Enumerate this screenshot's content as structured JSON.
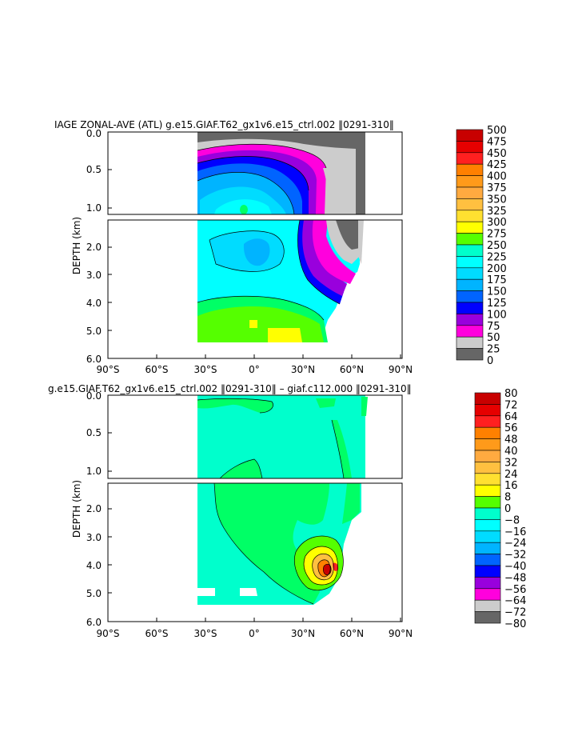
{
  "chart_data": [
    {
      "type": "contour",
      "title": "IAGE ZONAL-AVE (ATL) g.e15.GIAF.T62_gx1v6.e15_ctrl.002 ‖0291-310‖",
      "ylabel": "DEPTH (km)",
      "x_ticks": [
        "90°S",
        "60°S",
        "30°S",
        "0°",
        "30°N",
        "60°N",
        "90°N"
      ],
      "x_range": [
        -90,
        90
      ],
      "y_ticks_upper": [
        "0.0",
        "0.5",
        "1.0"
      ],
      "y_ticks_lower": [
        "2.0",
        "3.0",
        "4.0",
        "5.0",
        "6.0"
      ],
      "y_range": [
        0,
        6
      ],
      "colorbar_levels": [
        "500",
        "475",
        "450",
        "425",
        "400",
        "375",
        "350",
        "325",
        "300",
        "275",
        "250",
        "225",
        "200",
        "175",
        "150",
        "125",
        "100",
        "75",
        "50",
        "25",
        "0"
      ],
      "colorbar_colors": [
        "#c80000",
        "#e60000",
        "#ff2020",
        "#ff8000",
        "#ff9a1a",
        "#ffaa40",
        "#ffc040",
        "#ffe030",
        "#ffff00",
        "#55ff00",
        "#00ff66",
        "#00ffcc",
        "#00ffff",
        "#00dcff",
        "#00b4ff",
        "#0064ff",
        "#0000ff",
        "#9900dd",
        "#ff00dd",
        "#cccccc",
        "#666666"
      ]
    },
    {
      "type": "contour",
      "title": "g.e15.GIAF.T62_gx1v6.e15_ctrl.002 ‖0291-310‖ – giaf.c112.000 ‖0291-310‖",
      "ylabel": "DEPTH (km)",
      "x_ticks": [
        "90°S",
        "60°S",
        "30°S",
        "0°",
        "30°N",
        "60°N",
        "90°N"
      ],
      "x_range": [
        -90,
        90
      ],
      "y_ticks_upper": [
        "0.0",
        "0.5",
        "1.0"
      ],
      "y_ticks_lower": [
        "2.0",
        "3.0",
        "4.0",
        "5.0",
        "6.0"
      ],
      "y_range": [
        0,
        6
      ],
      "colorbar_levels": [
        "80",
        "72",
        "64",
        "56",
        "48",
        "40",
        "32",
        "24",
        "16",
        "8",
        "0",
        "−8",
        "−16",
        "−24",
        "−32",
        "−40",
        "−48",
        "−56",
        "−64",
        "−72",
        "−80"
      ],
      "colorbar_colors": [
        "#c80000",
        "#e60000",
        "#ff2020",
        "#ff8000",
        "#ff9a1a",
        "#ffaa40",
        "#ffc040",
        "#ffe030",
        "#ffff00",
        "#55ff00",
        "#00ff66",
        "#00ffcc",
        "#00ffff",
        "#00dcff",
        "#00b4ff",
        "#0064ff",
        "#0000ff",
        "#9900dd",
        "#ff00dd",
        "#cccccc",
        "#666666"
      ]
    }
  ]
}
